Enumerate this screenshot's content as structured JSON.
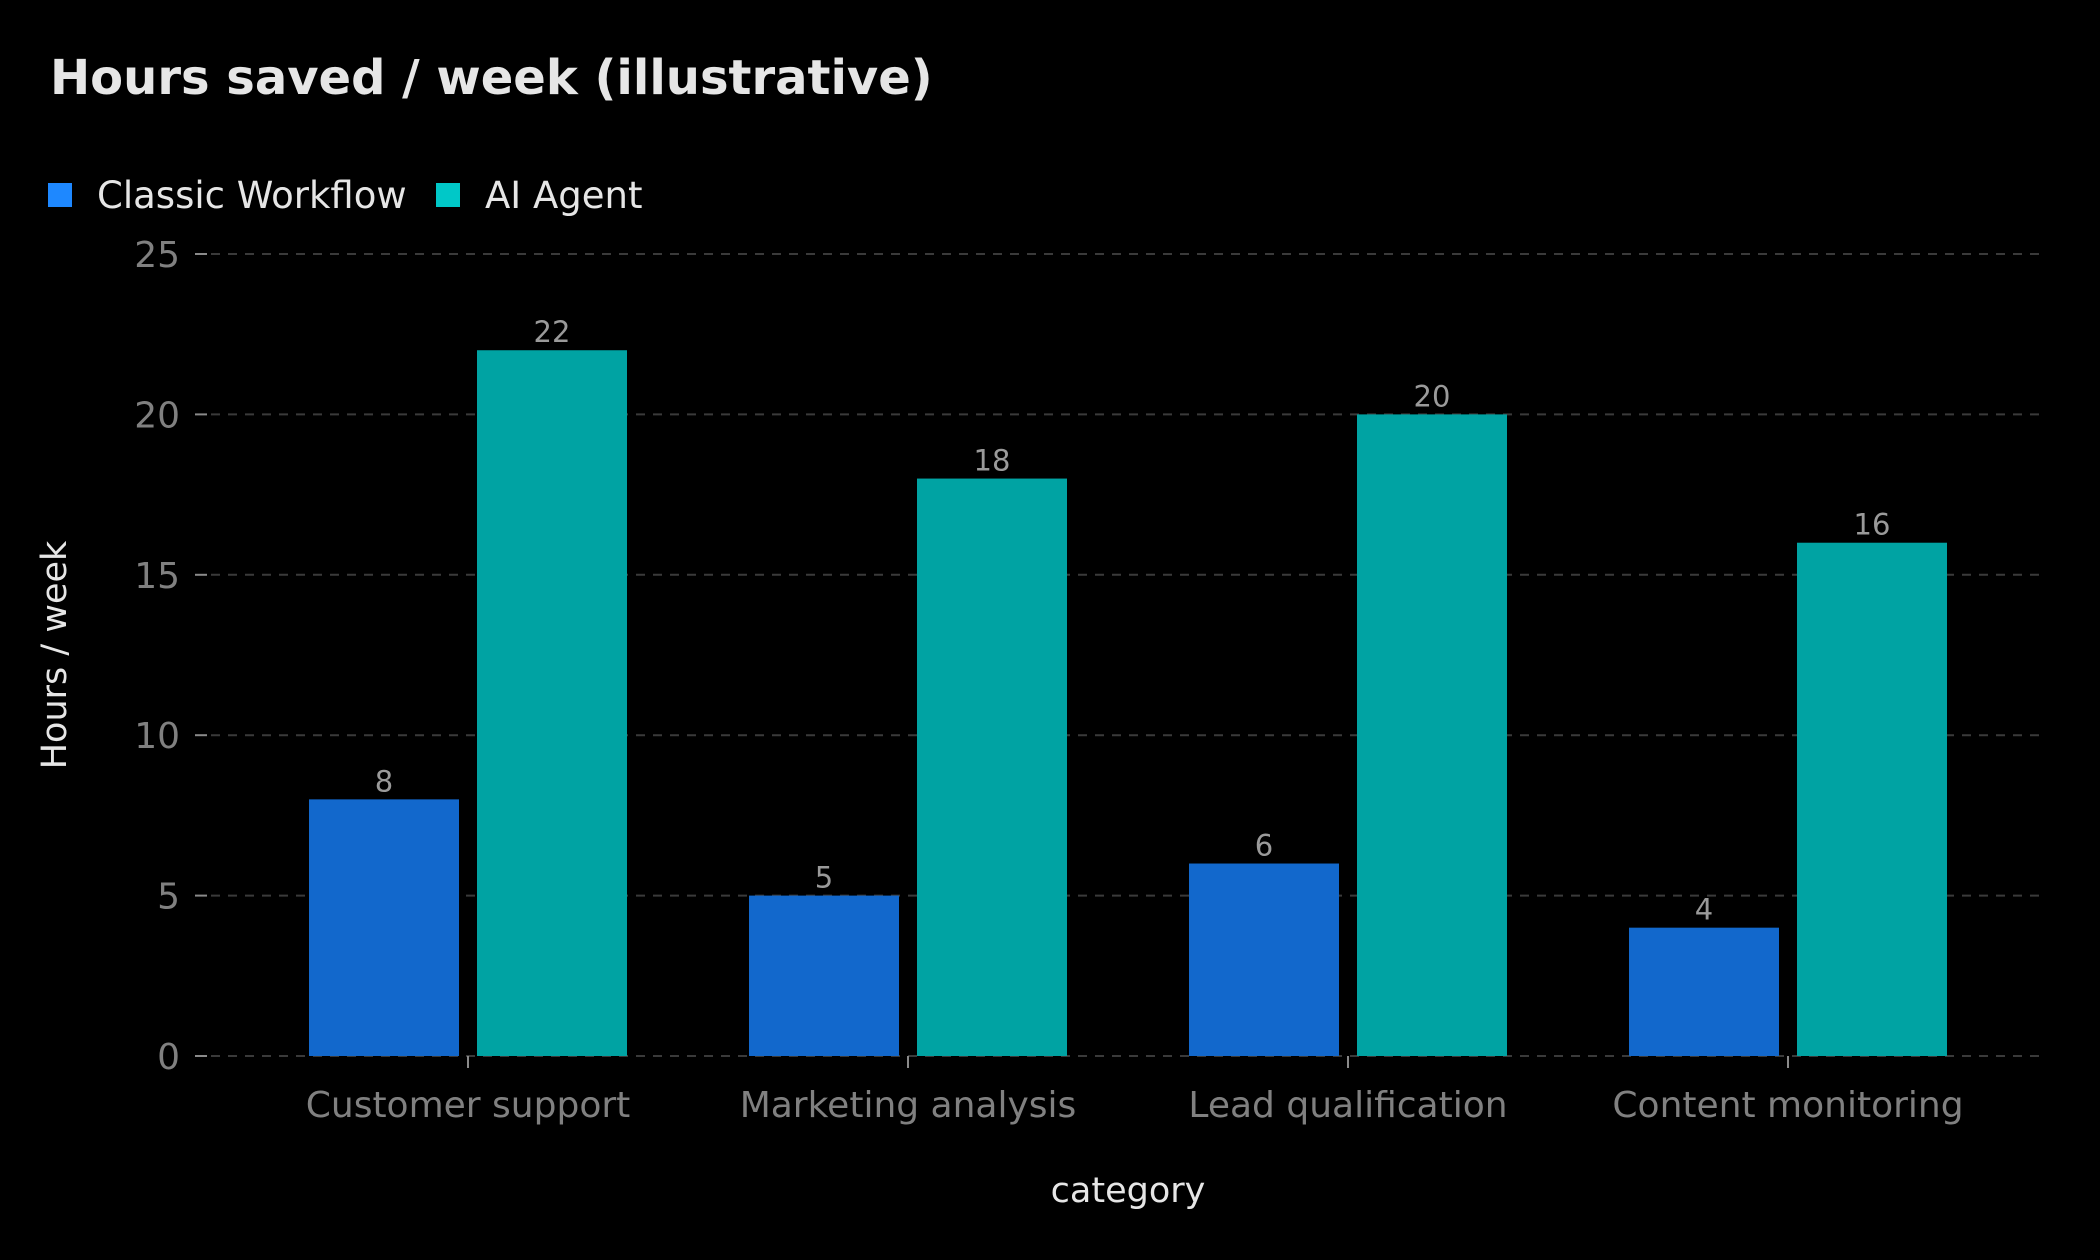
{
  "chart_data": {
    "type": "bar",
    "title": "Hours saved / week (illustrative)",
    "xlabel": "category",
    "ylabel": "Hours / week",
    "categories": [
      "Customer support",
      "Marketing analysis",
      "Lead qualification",
      "Content monitoring"
    ],
    "series": [
      {
        "name": "Classic Workflow",
        "values": [
          8,
          5,
          6,
          4
        ],
        "color": "#1e88ff",
        "bar_color": "#1268cc"
      },
      {
        "name": "AI Agent",
        "values": [
          22,
          18,
          20,
          16
        ],
        "color": "#00c8c8",
        "bar_color": "#00a3a3"
      }
    ],
    "ylim": [
      0,
      25
    ],
    "yticks": [
      0,
      5,
      10,
      15,
      20,
      25
    ],
    "grid": true,
    "legend_position": "top-left",
    "data_labels": true,
    "background": "#000000"
  }
}
